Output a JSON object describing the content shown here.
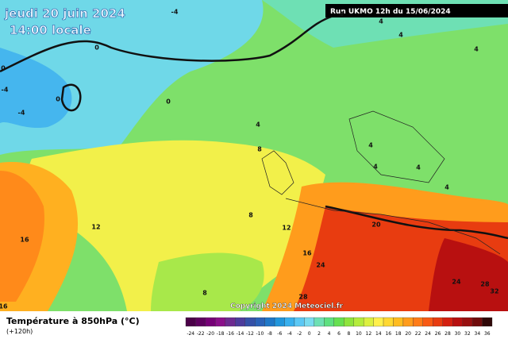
{
  "header": {
    "date": "jeudi 20 juin 2024",
    "time": "14:00 locale",
    "run": "Run UKMO 12h du 15/06/2024"
  },
  "copyright": "Copyright 2024 Meteociel.fr",
  "contour_labels": [
    "-4",
    "4",
    "4",
    "4",
    "4",
    "0",
    "0",
    "-4",
    "0",
    "0",
    "-4",
    "4",
    "8",
    "4",
    "4",
    "4",
    "4",
    "16",
    "12",
    "8",
    "12",
    "16",
    "20",
    "24",
    "28",
    "8",
    "24",
    "28",
    "32",
    "16"
  ],
  "legend": {
    "title": "Température à 850hPa (°C)",
    "subtitle": "(+120h)",
    "scale": [
      {
        "value": -24,
        "color": "#4b0048"
      },
      {
        "value": -22,
        "color": "#5e005f"
      },
      {
        "value": -20,
        "color": "#760077"
      },
      {
        "value": -18,
        "color": "#8a0f8a"
      },
      {
        "value": -16,
        "color": "#6d2a90"
      },
      {
        "value": -14,
        "color": "#4d3c9c"
      },
      {
        "value": -12,
        "color": "#3551a8"
      },
      {
        "value": -10,
        "color": "#2a62b8"
      },
      {
        "value": -8,
        "color": "#1f78c8"
      },
      {
        "value": -6,
        "color": "#2196dc"
      },
      {
        "value": -4,
        "color": "#38b0ee"
      },
      {
        "value": -2,
        "color": "#5cc8f5"
      },
      {
        "value": 0,
        "color": "#7adcf0"
      },
      {
        "value": 2,
        "color": "#6ee0b4"
      },
      {
        "value": 4,
        "color": "#5ee080"
      },
      {
        "value": 6,
        "color": "#66e050"
      },
      {
        "value": 8,
        "color": "#8ee43c"
      },
      {
        "value": 10,
        "color": "#b4ec3c"
      },
      {
        "value": 12,
        "color": "#dcf040"
      },
      {
        "value": 14,
        "color": "#fff04c"
      },
      {
        "value": 16,
        "color": "#ffd832"
      },
      {
        "value": 18,
        "color": "#ffbc20"
      },
      {
        "value": 20,
        "color": "#ff9c1c"
      },
      {
        "value": 22,
        "color": "#ff7c18"
      },
      {
        "value": 24,
        "color": "#f85a14"
      },
      {
        "value": 26,
        "color": "#e83c10"
      },
      {
        "value": 28,
        "color": "#d42010"
      },
      {
        "value": 30,
        "color": "#b81010"
      },
      {
        "value": 32,
        "color": "#981010"
      },
      {
        "value": 34,
        "color": "#700c0c"
      },
      {
        "value": 36,
        "color": "#300808"
      }
    ]
  }
}
